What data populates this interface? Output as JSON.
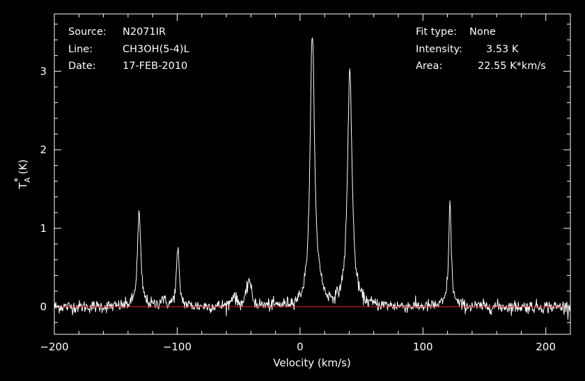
{
  "chart_data": {
    "type": "line",
    "title": "",
    "xlabel": "Velocity (km/s)",
    "ylabel": {
      "base": "T",
      "subscript": "A",
      "superscript": "*",
      "unit": " (K)"
    },
    "xlim": [
      -200,
      220
    ],
    "ylim": [
      -0.35,
      3.73
    ],
    "x_ticks": [
      -200,
      -100,
      0,
      100,
      200
    ],
    "x_tick_labels": [
      "−200",
      "−100",
      "0",
      "100",
      "200"
    ],
    "y_ticks": [
      0,
      1,
      2,
      3
    ],
    "y_tick_labels": [
      "0",
      "1",
      "2",
      "3"
    ],
    "x_minor_step": 20,
    "y_minor_step": 0.2,
    "grid": false,
    "legend": "none",
    "baseline": 0,
    "series": [
      {
        "color": "#ffffff",
        "noise_rms": 0.04,
        "peaks": [
          {
            "v": -131,
            "amp": 1.2,
            "width": 1.6
          },
          {
            "v": -112,
            "amp": 0.1,
            "width": 2.0
          },
          {
            "v": -99.5,
            "amp": 0.72,
            "width": 1.4
          },
          {
            "v": -54,
            "amp": 0.15,
            "width": 2.0
          },
          {
            "v": -41.5,
            "amp": 0.35,
            "width": 2.0
          },
          {
            "v": 10,
            "amp": 3.53,
            "width": 2.1
          },
          {
            "v": 16,
            "amp": 0.15,
            "width": 2.0
          },
          {
            "v": 40.5,
            "amp": 3.02,
            "width": 2.2
          },
          {
            "v": 122,
            "amp": 1.3,
            "width": 1.3
          }
        ]
      }
    ],
    "baseline_color": "#dd2222",
    "annotations": {
      "left": [
        {
          "key": "Source:",
          "value": "N2071IR"
        },
        {
          "key": "Line:",
          "value": "CH3OH(5-4)L"
        },
        {
          "key": "Date:",
          "value": "17-FEB-2010"
        }
      ],
      "right": [
        {
          "key": "Fit type:",
          "value": "None"
        },
        {
          "key": "Intensity:",
          "value": "3.53 K"
        },
        {
          "key": "Area:",
          "value": "22.55 K*km/s"
        }
      ]
    }
  }
}
